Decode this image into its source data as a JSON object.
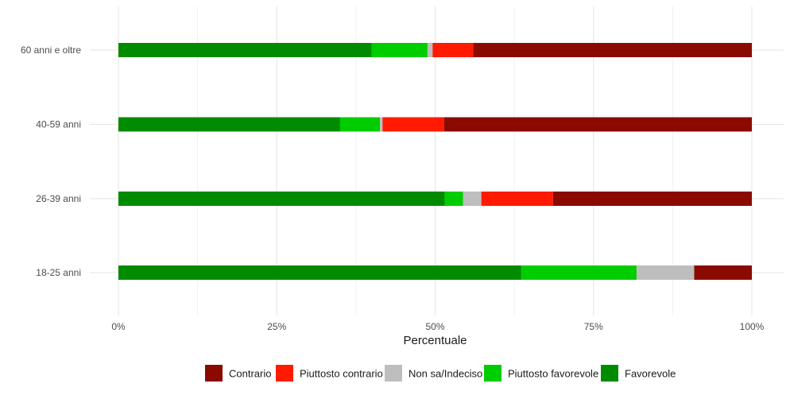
{
  "chart_data": {
    "type": "bar",
    "orientation": "horizontal",
    "stacked": true,
    "normalized": true,
    "xlabel": "Percentuale",
    "ylabel": "",
    "xlim": [
      0,
      1
    ],
    "x_ticks": [
      "0%",
      "25%",
      "50%",
      "75%",
      "100%"
    ],
    "grid": true,
    "legend_position": "bottom",
    "categories": [
      "60 anni e oltre",
      "40-59 anni",
      "26-39 anni",
      "18-25 anni"
    ],
    "series": [
      {
        "name": "Favorevole",
        "color": "#008B00",
        "values": [
          0.4,
          0.35,
          0.515,
          0.636
        ]
      },
      {
        "name": "Piuttosto favorevole",
        "color": "#00CD00",
        "values": [
          0.088,
          0.063,
          0.029,
          0.182
        ]
      },
      {
        "name": "Non sa/Indeciso",
        "color": "#BEBEBE",
        "values": [
          0.008,
          0.004,
          0.029,
          0.091
        ]
      },
      {
        "name": "Piuttosto contrario",
        "color": "#FF1A00",
        "values": [
          0.064,
          0.097,
          0.113,
          0.0
        ]
      },
      {
        "name": "Contrario",
        "color": "#8B0A00",
        "values": [
          0.44,
          0.486,
          0.314,
          0.091
        ]
      }
    ],
    "legend_order": [
      "Contrario",
      "Piuttosto contrario",
      "Non sa/Indeciso",
      "Piuttosto favorevole",
      "Favorevole"
    ]
  }
}
